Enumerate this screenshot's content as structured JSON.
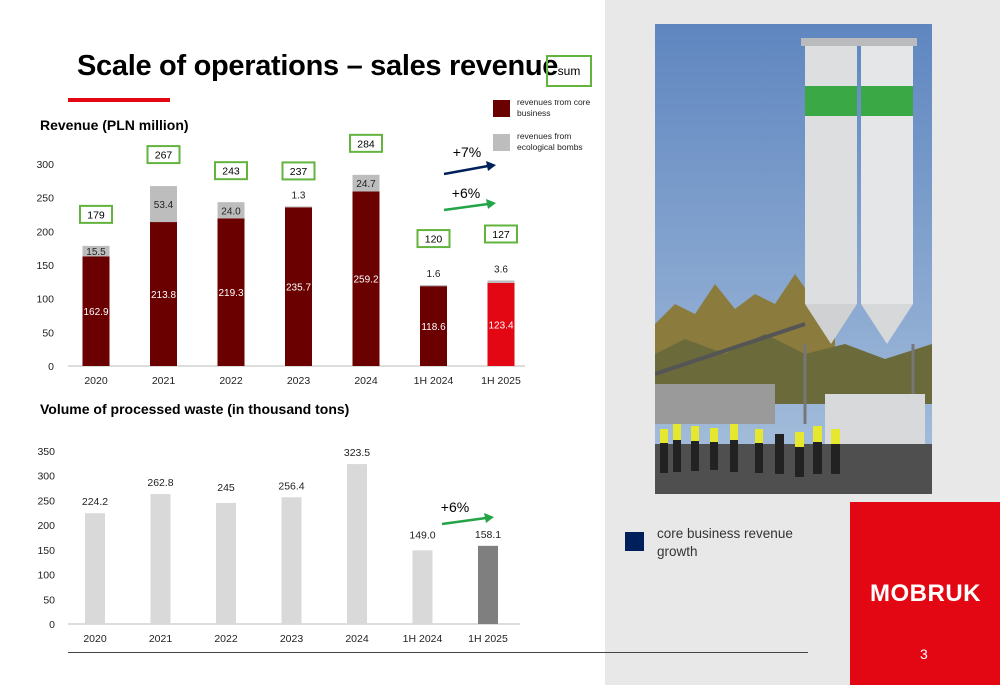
{
  "page": {
    "title": "Scale of operations – sales revenue",
    "sum_label": "sum",
    "page_number": "3",
    "logo_text": "MOBRUK",
    "legend_core_growth": "core business revenue growth",
    "colors": {
      "accent_red": "#e30613",
      "dark_red": "#6b0000",
      "navy": "#00205b",
      "green": "#63b33f",
      "gray": "#bdbdbd"
    }
  },
  "chart_data": [
    {
      "type": "bar",
      "title": "Revenue (PLN million)",
      "categories": [
        "2020",
        "2021",
        "2022",
        "2023",
        "2024",
        "1H 2024",
        "1H 2025"
      ],
      "series": [
        {
          "name": "revenues from core business",
          "values": [
            162.9,
            213.8,
            219.3,
            235.7,
            259.2,
            118.6,
            123.4
          ]
        },
        {
          "name": "revenues from ecological bombs",
          "values": [
            15.5,
            53.4,
            24.0,
            1.3,
            24.7,
            1.6,
            3.6
          ]
        }
      ],
      "series_labels": {
        "core": [
          "162.9",
          "213.8",
          "219.3",
          "235.7",
          "259.2",
          "118.6",
          "123.4"
        ],
        "eco": [
          "15.5",
          "53.4",
          "24.0",
          "1.3",
          "24.7",
          "1.6",
          "3.6"
        ]
      },
      "totals": [
        "179",
        "267",
        "243",
        "237",
        "284",
        "120",
        "127"
      ],
      "yticks": [
        "0",
        "50",
        "100",
        "150",
        "200",
        "250",
        "300"
      ],
      "ylim": [
        0,
        300
      ],
      "highlight_color": "#e30613",
      "annotations": [
        "+7%",
        "+6%"
      ],
      "legend": "top-right"
    },
    {
      "type": "bar",
      "title": "Volume of processed waste (in thousand tons)",
      "categories": [
        "2020",
        "2021",
        "2022",
        "2023",
        "2024",
        "1H 2024",
        "1H 2025"
      ],
      "values": [
        224.2,
        262.8,
        245,
        256.4,
        323.5,
        149.0,
        158.1
      ],
      "value_labels": [
        "224.2",
        "262.8",
        "245",
        "256.4",
        "323.5",
        "149.0",
        "158.1"
      ],
      "yticks": [
        "0",
        "50",
        "100",
        "150",
        "200",
        "250",
        "300",
        "350"
      ],
      "ylim": [
        0,
        350
      ],
      "annotations": [
        "+6%"
      ]
    }
  ]
}
